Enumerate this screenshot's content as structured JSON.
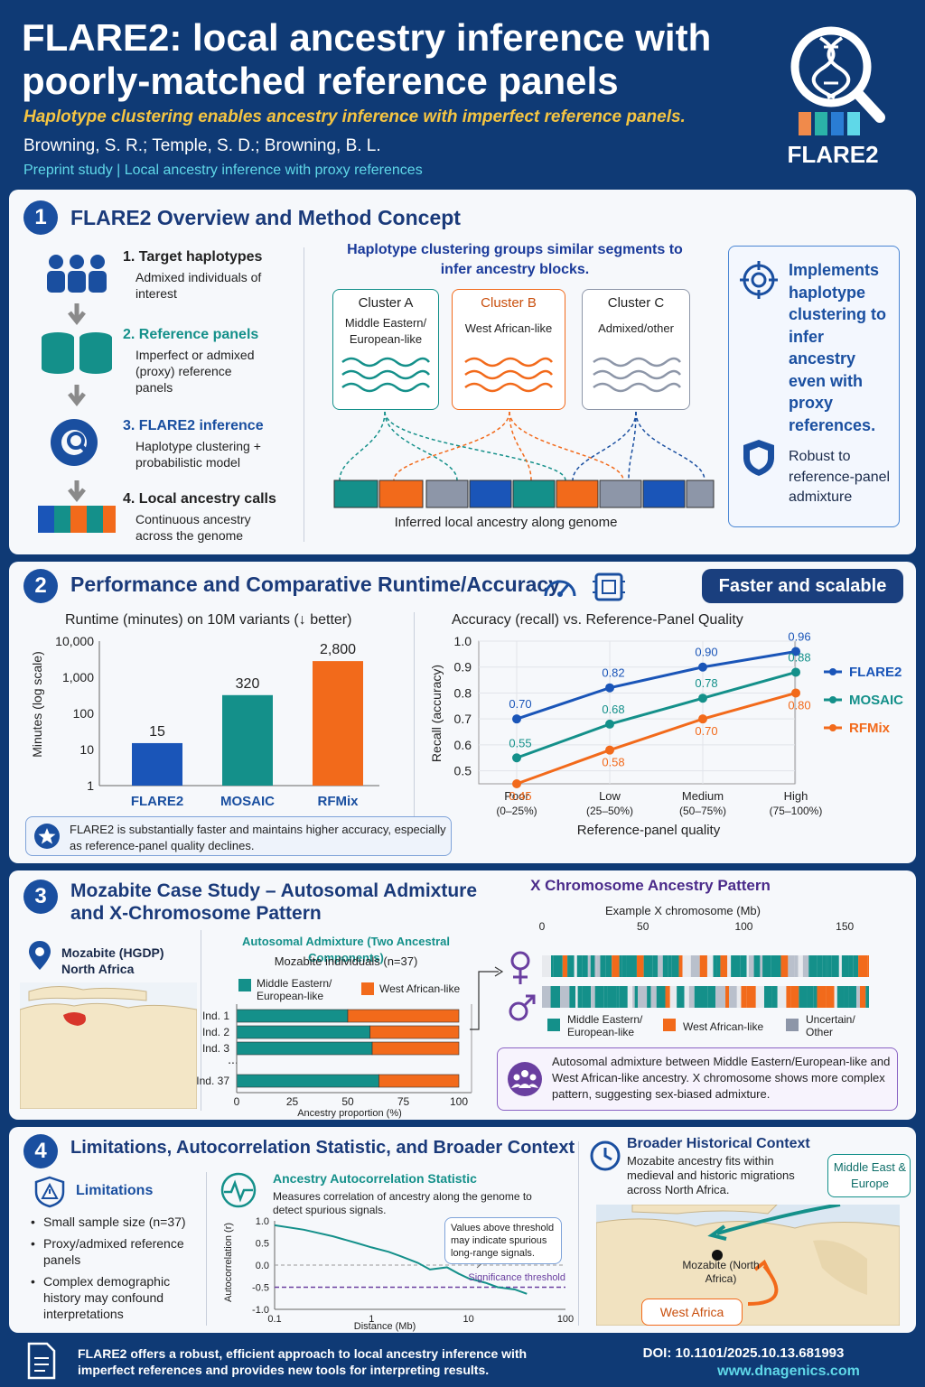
{
  "header": {
    "title": "FLARE2: local ancestry inference with poorly-matched reference panels",
    "subtitle": "Haplotype clustering enables ancestry inference with imperfect reference panels.",
    "authors": "Browning, S. R.; Temple, S. D.; Browning, B. L.",
    "preprint": "Preprint study | Local ancestry inference with proxy references",
    "logo_text": "FLARE2"
  },
  "s1": {
    "num": "1",
    "title": "FLARE2 Overview and Method Concept",
    "steps": [
      {
        "title": "1. Target haplotypes",
        "desc": "Admixed individuals of interest"
      },
      {
        "title": "2. Reference panels",
        "desc": "Imperfect or admixed (proxy) reference panels"
      },
      {
        "title": "3. FLARE2 inference",
        "desc": "Haplotype clustering + probabilistic model"
      },
      {
        "title": "4. Local ancestry calls",
        "desc": "Continuous ancestry across the genome"
      }
    ],
    "cluster_heading": "Haplotype clustering groups similar segments to infer ancestry blocks.",
    "clusters": [
      {
        "name": "Cluster A",
        "desc": "Middle Eastern/ European-like"
      },
      {
        "name": "Cluster B",
        "desc": "West African-like"
      },
      {
        "name": "Cluster C",
        "desc": "Admixed/other"
      }
    ],
    "genome_caption": "Inferred local ancestry along genome",
    "callout1": "Implements haplotype clustering to infer ancestry even with proxy references.",
    "callout2": "Robust to reference-panel admixture"
  },
  "s2": {
    "num": "2",
    "title": "Performance and Comparative Runtime/Accuracy",
    "badge": "Faster and scalable",
    "runtime_title": "Runtime (minutes) on 10M variants (↓ better)",
    "runtime_ylabel": "Minutes (log scale)",
    "accuracy_title": "Accuracy (recall) vs. Reference-Panel Quality",
    "accuracy_ylabel": "Recall (accuracy)",
    "accuracy_xlabel": "Reference-panel quality",
    "note": "FLARE2 is substantially faster and maintains higher accuracy, especially as reference-panel quality declines."
  },
  "chart_data": [
    {
      "type": "bar",
      "title": "Runtime (minutes) on 10M variants (↓ better)",
      "ylabel": "Minutes (log scale)",
      "yscale": "log",
      "ylim": [
        1,
        10000
      ],
      "yticks": [
        "10,000",
        "1,000",
        "100",
        "10",
        "1"
      ],
      "categories": [
        "FLARE2",
        "MOSAIC",
        "RFMix"
      ],
      "values": [
        15,
        320,
        2800
      ],
      "labels": [
        "15",
        "320",
        "2,800"
      ],
      "colors": [
        "#1a55b8",
        "#14908a",
        "#f26a1b"
      ]
    },
    {
      "type": "line",
      "title": "Accuracy (recall) vs. Reference-Panel Quality",
      "xlabel": "Reference-panel quality",
      "ylabel": "Recall (accuracy)",
      "ylim": [
        0.45,
        1.0
      ],
      "yticks": [
        "1.0",
        "0.9",
        "0.8",
        "0.7",
        "0.6",
        "0.5"
      ],
      "categories": [
        "Poor",
        "Low",
        "Medium",
        "High"
      ],
      "category_ranges": [
        "(0–25%)",
        "(25–50%)",
        "(50–75%)",
        "(75–100%)"
      ],
      "legend": "right",
      "series": [
        {
          "name": "FLARE2",
          "values": [
            0.7,
            0.82,
            0.9,
            0.96
          ],
          "labels": [
            "0.70",
            "0.82",
            "0.90",
            "0.96"
          ],
          "color": "#1a55b8"
        },
        {
          "name": "MOSAIC",
          "values": [
            0.55,
            0.68,
            0.78,
            0.88
          ],
          "labels": [
            "0.55",
            "0.68",
            "0.78",
            "0.88"
          ],
          "color": "#14908a"
        },
        {
          "name": "RFMix",
          "values": [
            0.45,
            0.58,
            0.7,
            0.8
          ],
          "labels": [
            "0.45",
            "0.58",
            "0.70",
            "0.80"
          ],
          "color": "#f26a1b"
        }
      ]
    },
    {
      "type": "bar",
      "orientation": "horizontal-stacked",
      "title": "Autosomal Admixture (Two Ancestral Components)",
      "subtitle": "Mozabite individuals (n=37)",
      "xlabel": "Ancestry proportion (%)",
      "xticks": [
        "0",
        "25",
        "50",
        "75",
        "100"
      ],
      "categories": [
        "Ind. 1",
        "Ind. 2",
        "Ind. 3",
        "Ind. 37"
      ],
      "gap_label": "...",
      "series": [
        {
          "name": "Middle Eastern/ European-like",
          "values": [
            50,
            60,
            61,
            64
          ],
          "color": "#14908a"
        },
        {
          "name": "West African-like",
          "values": [
            50,
            40,
            39,
            36
          ],
          "color": "#f26a1b"
        }
      ]
    },
    {
      "type": "line",
      "title": "Ancestry Autocorrelation Statistic",
      "xlabel": "Distance (Mb)",
      "ylabel": "Autocorrelation (r)",
      "xscale": "log",
      "xticks": [
        "0.1",
        "1",
        "10",
        "100"
      ],
      "yticks": [
        "1.0",
        "0.5",
        "0.0",
        "-0.5",
        "-1.0"
      ],
      "ylim": [
        -1.0,
        1.0
      ],
      "threshold": -0.5,
      "threshold_label": "Significance threshold",
      "annotation": "Values above threshold may indicate spurious long-range signals.",
      "series": [
        {
          "x": [
            0.1,
            0.2,
            0.4,
            0.7,
            1.0,
            1.5,
            2.0,
            3.0,
            4.0,
            6.0,
            8.0,
            10.0,
            15.0,
            20.0,
            30.0,
            40.0
          ],
          "values": [
            0.9,
            0.8,
            0.65,
            0.5,
            0.4,
            0.3,
            0.2,
            0.05,
            -0.1,
            -0.05,
            -0.2,
            -0.3,
            -0.4,
            -0.5,
            -0.55,
            -0.65
          ]
        }
      ]
    }
  ],
  "s3": {
    "num": "3",
    "title": "Mozabite Case Study – Autosomal Admixture and X-Chromosome Pattern",
    "map_label": "Mozabite (HGDP) North Africa",
    "x_title": "X Chromosome Ancestry Pattern",
    "x_axis_title": "Example X chromosome (Mb)",
    "x_ticks": [
      "0",
      "50",
      "100",
      "150"
    ],
    "x_legend": [
      "Middle Eastern/ European-like",
      "West African-like",
      "Uncertain/ Other"
    ],
    "callout": "Autosomal admixture between Middle Eastern/European-like and West African-like ancestry. X chromosome shows more complex pattern, suggesting sex-biased admixture."
  },
  "s4": {
    "num": "4",
    "title": "Limitations, Autocorrelation Statistic, and Broader Context",
    "lim_title": "Limitations",
    "limitations": [
      "Small sample size (n=37)",
      "Proxy/admixed reference panels",
      "Complex demographic history may confound interpretations"
    ],
    "auto_title": "Ancestry Autocorrelation Statistic",
    "auto_desc": "Measures correlation of ancestry along the genome to detect spurious signals.",
    "context_title": "Broader Historical Context",
    "context_desc": "Mozabite ancestry fits within medieval and historic migrations across North Africa.",
    "map_me": "Middle East & Europe",
    "map_moz": "Mozabite (North Africa)",
    "map_wa": "West Africa"
  },
  "footer": {
    "summary": "FLARE2 offers a robust, efficient approach to local ancestry inference with imperfect references and provides new tools for interpreting results.",
    "doi": "DOI: 10.1101/2025.10.13.681993",
    "url": "www.dnagenics.com"
  },
  "colors": {
    "navy": "#0f3a75",
    "blue": "#1a55b8",
    "teal": "#14908a",
    "orange": "#f26a1b",
    "gray": "#8d96a8",
    "purple": "#6a3fa0"
  }
}
